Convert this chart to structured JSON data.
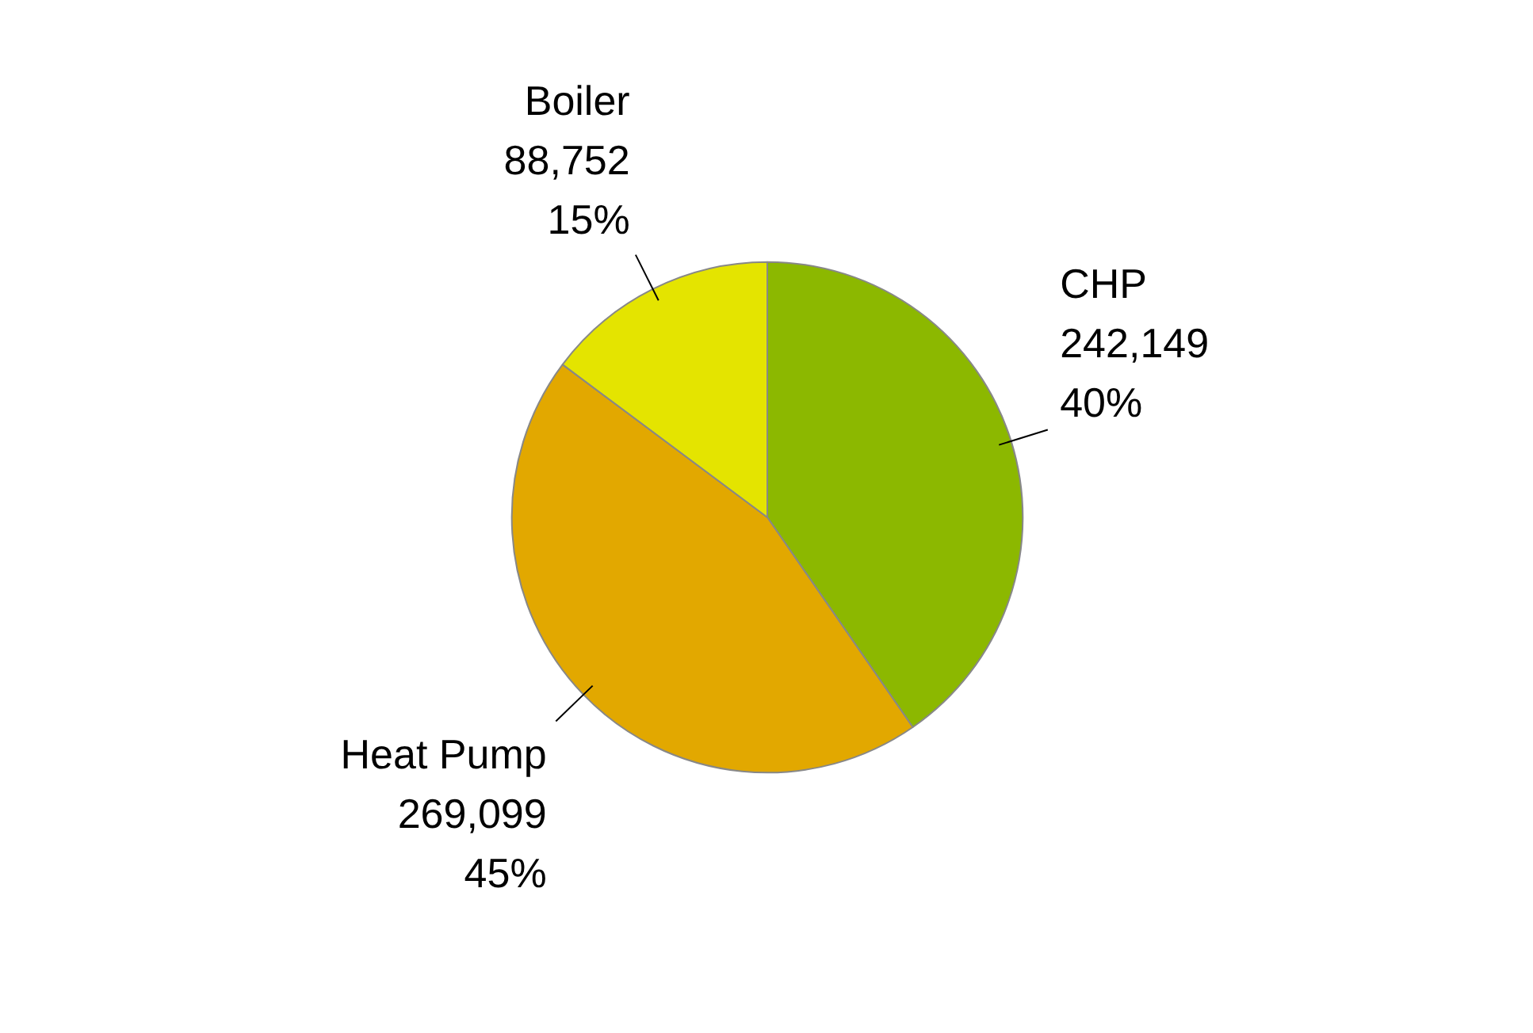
{
  "chart_data": {
    "type": "pie",
    "categories": [
      "CHP",
      "Heat Pump",
      "Boiler"
    ],
    "values": [
      242149,
      269099,
      88752
    ],
    "colors": [
      "#8cb800",
      "#e2a800",
      "#e4e400"
    ],
    "value_labels": [
      "242,149\n40%",
      "269,099\n45%",
      "88,752\n15%"
    ]
  }
}
